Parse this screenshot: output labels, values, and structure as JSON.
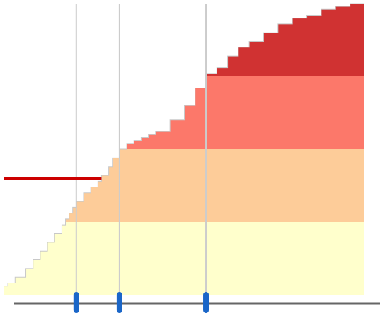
{
  "chart_data": {
    "type": "area",
    "title": "",
    "xlabel": "",
    "ylabel": "",
    "x_range": [
      0,
      100
    ],
    "y_range": [
      0,
      100
    ],
    "grid": false,
    "legend": "none",
    "bands": [
      {
        "from": 0,
        "to": 25,
        "color": "#ffffcc"
      },
      {
        "from": 25,
        "to": 50,
        "color": "#fdcc99"
      },
      {
        "from": 50,
        "to": 75,
        "color": "#fc786a"
      },
      {
        "from": 75,
        "to": 100,
        "color": "#d03232"
      }
    ],
    "curve": {
      "x": [
        0,
        1,
        3,
        6,
        8,
        10,
        12,
        14,
        16,
        17,
        18,
        19,
        20,
        22,
        24,
        26,
        27,
        29,
        30,
        32,
        34,
        36,
        38,
        40,
        42,
        46,
        50,
        53,
        56,
        59,
        62,
        65,
        68,
        72,
        76,
        80,
        84,
        88,
        92,
        96,
        100
      ],
      "y": [
        3,
        4,
        6,
        9,
        12,
        15,
        18,
        21,
        24,
        26,
        28,
        30,
        32,
        35,
        37,
        39,
        41,
        44,
        47,
        50,
        52,
        53,
        54,
        55,
        56,
        60,
        65,
        71,
        76,
        78,
        82,
        85,
        87,
        90,
        93,
        95,
        96,
        98,
        99,
        100,
        100
      ]
    },
    "reference_line": {
      "y": 40,
      "x_start": 0,
      "x_end": 27,
      "color": "#cc0000"
    },
    "markers": {
      "x": [
        20,
        32,
        56
      ],
      "color": "#1a66c8"
    },
    "baseline_color": "#666666",
    "guide_color": "#cccccc"
  }
}
